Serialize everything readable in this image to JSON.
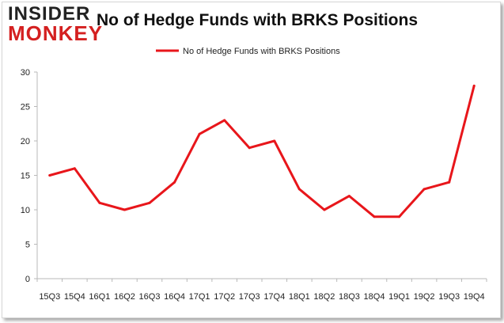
{
  "logo": {
    "line1": "INSIDER",
    "line2": "MONKEY"
  },
  "chart_data": {
    "type": "line",
    "title": "No of Hedge Funds with BRKS Positions",
    "categories": [
      "15Q3",
      "15Q4",
      "16Q1",
      "16Q2",
      "16Q3",
      "16Q4",
      "17Q1",
      "17Q2",
      "17Q3",
      "17Q4",
      "18Q1",
      "18Q2",
      "18Q3",
      "18Q4",
      "19Q1",
      "19Q2",
      "19Q3",
      "19Q4"
    ],
    "series": [
      {
        "name": "No of Hedge Funds with BRKS Positions",
        "values": [
          15,
          16,
          11,
          10,
          11,
          14,
          21,
          23,
          19,
          20,
          13,
          10,
          12,
          9,
          9,
          13,
          14,
          28
        ],
        "color": "#e8161b"
      }
    ],
    "ylim": [
      0,
      30
    ],
    "yticks": [
      0,
      5,
      10,
      15,
      20,
      25,
      30
    ],
    "xlabel": "",
    "ylabel": "",
    "grid": false,
    "legend_position": "top-center"
  }
}
